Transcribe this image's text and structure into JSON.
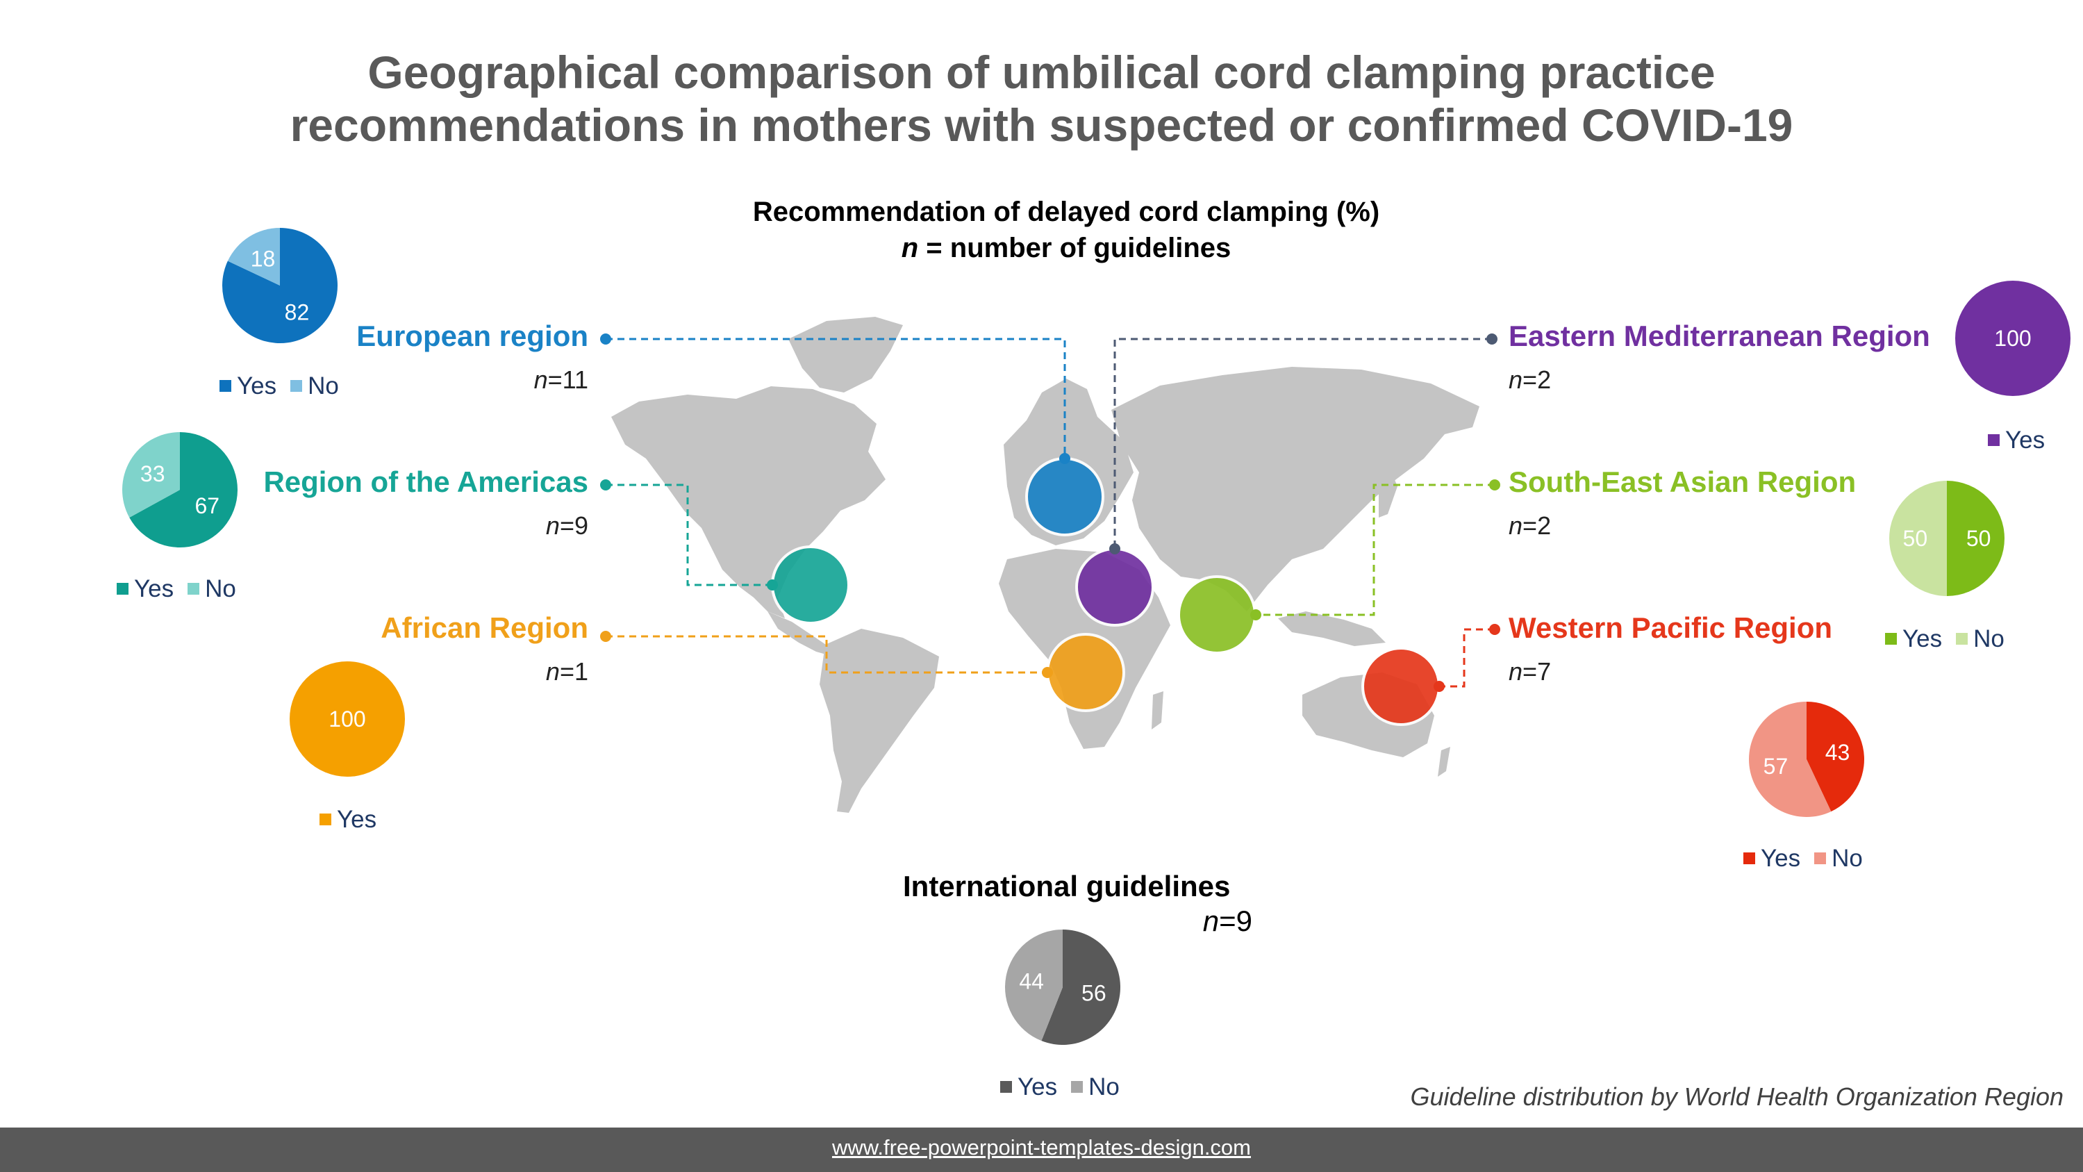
{
  "title": {
    "line1": "Geographical comparison of umbilical cord clamping practice",
    "line2": "recommendations in mothers with suspected or confirmed COVID-19"
  },
  "subtitle": {
    "line1": "Recommendation of delayed cord clamping (%)",
    "line2_n": "n",
    "line2_rest": " = number of guidelines"
  },
  "legend_labels": {
    "yes": "Yes",
    "no": "No"
  },
  "chart_data": [
    {
      "type": "pie",
      "region": "European region",
      "n": "11",
      "color": "#1a82c6",
      "slices": [
        {
          "label": "Yes",
          "value": 82,
          "color": "#0e72bd"
        },
        {
          "label": "No",
          "value": 18,
          "color": "#7fbfe2"
        }
      ]
    },
    {
      "type": "pie",
      "region": "Region of the Americas",
      "n": "9",
      "color": "#16a596",
      "slices": [
        {
          "label": "Yes",
          "value": 67,
          "color": "#0f9e8f"
        },
        {
          "label": "No",
          "value": 33,
          "color": "#7fd3cb"
        }
      ]
    },
    {
      "type": "pie",
      "region": "African Region",
      "n": "1",
      "color": "#f0a01a",
      "slices": [
        {
          "label": "Yes",
          "value": 100,
          "color": "#f5a000"
        }
      ]
    },
    {
      "type": "pie",
      "region": "Eastern Mediterranean Region",
      "n": "2",
      "color": "#7030a0",
      "slices": [
        {
          "label": "Yes",
          "value": 100,
          "color": "#7030a0"
        }
      ]
    },
    {
      "type": "pie",
      "region": "South-East Asian Region",
      "n": "2",
      "color": "#8ac025",
      "slices": [
        {
          "label": "Yes",
          "value": 50,
          "color": "#7dbb18"
        },
        {
          "label": "No",
          "value": 50,
          "color": "#c9e3a0"
        }
      ]
    },
    {
      "type": "pie",
      "region": "Western Pacific Region",
      "n": "7",
      "color": "#e5371b",
      "slices": [
        {
          "label": "Yes",
          "value": 43,
          "color": "#e52a0c"
        },
        {
          "label": "No",
          "value": 57,
          "color": "#f19585"
        }
      ]
    },
    {
      "type": "pie",
      "region": "International  guidelines",
      "n": "9",
      "color": "#595959",
      "slices": [
        {
          "label": "Yes",
          "value": 56,
          "color": "#595959"
        },
        {
          "label": "No",
          "value": 44,
          "color": "#a6a6a6"
        }
      ]
    }
  ],
  "caption": "Guideline distribution by World Health Organization Region",
  "footer": "www.free-powerpoint-templates-design.com"
}
